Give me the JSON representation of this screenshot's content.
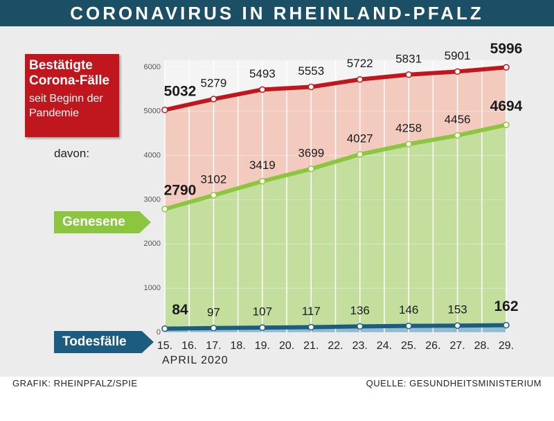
{
  "chart_data": {
    "type": "line",
    "title": "CORONAVIRUS IN RHEINLAND-PFALZ",
    "annotation": "davon:",
    "series_note": "seit Beginn der Pandemie",
    "x_label": "APRIL 2020",
    "credit": "GRAFIK: RHEINPFALZ/SPIE",
    "source": "QUELLE: GESUNDHEITSMINISTERIUM",
    "x": [
      15,
      17,
      19,
      21,
      23,
      25,
      27,
      29
    ],
    "xlim": [
      15,
      29
    ],
    "xticks": [
      {
        "value": 15,
        "label": "15."
      },
      {
        "value": 16,
        "label": "16."
      },
      {
        "value": 17,
        "label": "17."
      },
      {
        "value": 18,
        "label": "18."
      },
      {
        "value": 19,
        "label": "19."
      },
      {
        "value": 20,
        "label": "20."
      },
      {
        "value": 21,
        "label": "21."
      },
      {
        "value": 22,
        "label": "22."
      },
      {
        "value": 23,
        "label": "23."
      },
      {
        "value": 24,
        "label": "24."
      },
      {
        "value": 25,
        "label": "25."
      },
      {
        "value": 26,
        "label": "26."
      },
      {
        "value": 27,
        "label": "27."
      },
      {
        "value": 28,
        "label": "28."
      },
      {
        "value": 29,
        "label": "29."
      }
    ],
    "ylim": [
      0,
      6000
    ],
    "yticks": [
      0,
      1000,
      2000,
      3000,
      4000,
      5000,
      6000
    ],
    "grid": true,
    "series": [
      {
        "name": "Bestätigte Corona-Fälle",
        "color": "#c0161d",
        "area_color": "#f3c6b8",
        "values": [
          5032,
          5279,
          5493,
          5553,
          5722,
          5831,
          5901,
          5996
        ]
      },
      {
        "name": "Genesene",
        "color": "#8cc63f",
        "area_color": "#bfe09a",
        "values": [
          2790,
          3102,
          3419,
          3699,
          4027,
          4258,
          4456,
          4694
        ]
      },
      {
        "name": "Todesfälle",
        "color": "#1b5c80",
        "area_color": "#8fb8d6",
        "values": [
          84,
          97,
          107,
          117,
          136,
          146,
          153,
          162
        ]
      }
    ]
  }
}
